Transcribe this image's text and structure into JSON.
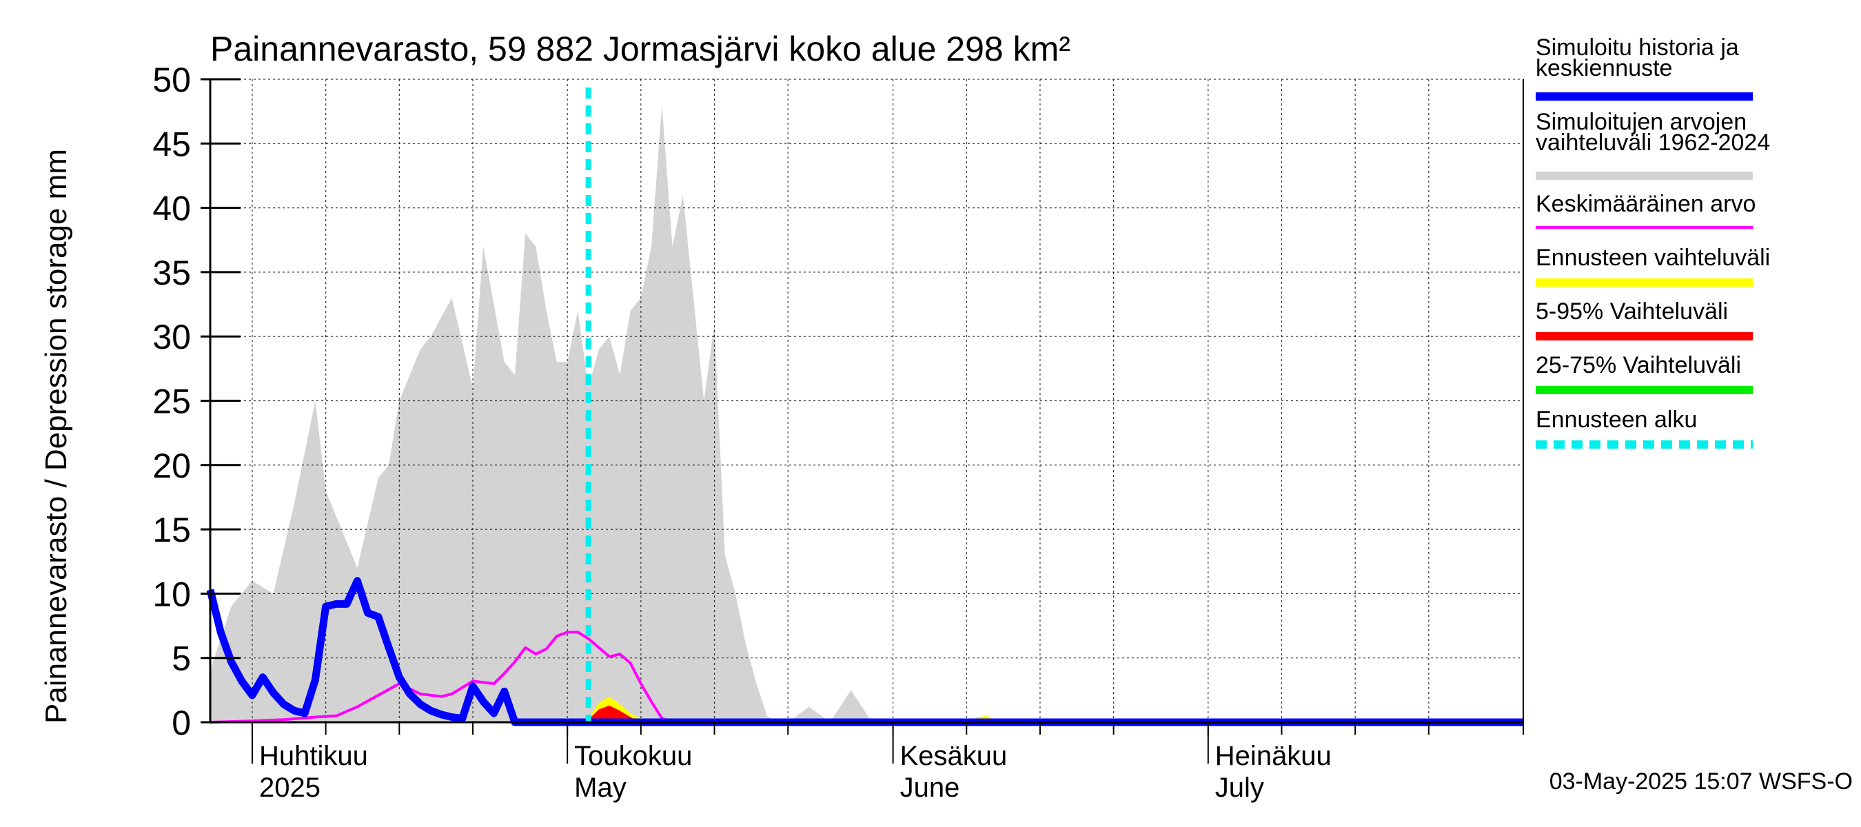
{
  "chart_data": {
    "type": "area",
    "title": "Painannevarasto, 59 882 Jormasjärvi koko alue 298 km²",
    "ylabel": "Painannevarasto / Depression storage    mm",
    "ylim": [
      0,
      50
    ],
    "yticks": [
      0,
      5,
      10,
      15,
      20,
      25,
      30,
      35,
      40,
      45,
      50
    ],
    "x_start": "2025-03-28",
    "x_end": "2025-07-31",
    "x_tick_dates": [
      "2025-04-01",
      "2025-04-08",
      "2025-04-15",
      "2025-04-22",
      "2025-05-01",
      "2025-05-08",
      "2025-05-15",
      "2025-05-22",
      "2025-06-01",
      "2025-06-08",
      "2025-06-15",
      "2025-06-22",
      "2025-07-01",
      "2025-07-08",
      "2025-07-15",
      "2025-07-22",
      "2025-07-31"
    ],
    "grid": true,
    "month_labels": [
      {
        "date": "2025-04-01",
        "fi": "Huhtikuu",
        "en": "2025"
      },
      {
        "date": "2025-05-01",
        "fi": "Toukokuu",
        "en": "May"
      },
      {
        "date": "2025-06-01",
        "fi": "Kesäkuu",
        "en": "June"
      },
      {
        "date": "2025-07-01",
        "fi": "Heinäkuu",
        "en": "July"
      }
    ],
    "forecast_start": "2025-05-03",
    "series": [
      {
        "name": "Simuloitujen arvojen vaihteluväli 1962-2024",
        "kind": "band",
        "color": "#d3d3d3",
        "x": [
          "2025-03-28",
          "2025-03-30",
          "2025-04-01",
          "2025-04-03",
          "2025-04-05",
          "2025-04-07",
          "2025-04-08",
          "2025-04-10",
          "2025-04-11",
          "2025-04-13",
          "2025-04-14",
          "2025-04-15",
          "2025-04-17",
          "2025-04-18",
          "2025-04-20",
          "2025-04-22",
          "2025-04-23",
          "2025-04-25",
          "2025-04-26",
          "2025-04-27",
          "2025-04-28",
          "2025-04-29",
          "2025-04-30",
          "2025-05-01",
          "2025-05-02",
          "2025-05-03",
          "2025-05-04",
          "2025-05-05",
          "2025-05-06",
          "2025-05-07",
          "2025-05-08",
          "2025-05-09",
          "2025-05-10",
          "2025-05-11",
          "2025-05-12",
          "2025-05-13",
          "2025-05-14",
          "2025-05-15",
          "2025-05-16",
          "2025-05-17",
          "2025-05-18",
          "2025-05-19",
          "2025-05-20",
          "2025-05-21",
          "2025-05-22",
          "2025-05-24",
          "2025-05-26",
          "2025-05-28",
          "2025-05-30",
          "2025-06-01",
          "2025-06-02",
          "2025-06-03",
          "2025-06-04",
          "2025-06-05",
          "2025-06-07"
        ],
        "low": [
          0,
          0,
          0,
          0,
          0,
          0,
          0,
          0,
          0,
          0,
          0,
          0,
          0,
          0,
          0,
          0,
          0,
          0,
          0,
          0,
          0,
          0,
          0,
          0,
          0,
          0,
          0,
          0,
          0,
          0,
          0,
          0,
          0,
          0,
          0,
          0,
          0,
          0,
          0,
          0,
          0,
          0,
          0,
          0,
          0,
          0,
          0,
          0,
          0,
          0,
          0,
          0,
          0,
          0,
          0
        ],
        "high": [
          4,
          9,
          11,
          10,
          17,
          25,
          18,
          14,
          12,
          19,
          20,
          25,
          29,
          30,
          33,
          26,
          37,
          28,
          27,
          38,
          37,
          32,
          28,
          28,
          32,
          26,
          29,
          30,
          27,
          32,
          33,
          37,
          48,
          37,
          41,
          33,
          25,
          31,
          13,
          10,
          6,
          3,
          0.5,
          0,
          0,
          1.2,
          0,
          2.5,
          0,
          0,
          0,
          0,
          0,
          0,
          0
        ]
      },
      {
        "name": "Ennusteen vaihteluväli",
        "kind": "band",
        "color": "#ffff00",
        "x": [
          "2025-05-03",
          "2025-05-04",
          "2025-05-05",
          "2025-05-06",
          "2025-05-07",
          "2025-05-08",
          "2025-05-09",
          "2025-06-08",
          "2025-06-09",
          "2025-06-10",
          "2025-06-11"
        ],
        "low": [
          0,
          0,
          0,
          0,
          0,
          0,
          0,
          0,
          0,
          0,
          0
        ],
        "high": [
          0.3,
          1.5,
          2.0,
          1.4,
          0.7,
          0.3,
          0,
          0,
          0.4,
          0.5,
          0
        ]
      },
      {
        "name": "5-95% Vaihteluväli",
        "kind": "band",
        "color": "#ff0000",
        "x": [
          "2025-05-03",
          "2025-05-04",
          "2025-05-05",
          "2025-05-06",
          "2025-05-07",
          "2025-05-08"
        ],
        "low": [
          0,
          0,
          0,
          0,
          0,
          0
        ],
        "high": [
          0.2,
          1.0,
          1.3,
          0.9,
          0.4,
          0
        ]
      },
      {
        "name": "25-75% Vaihteluväli",
        "kind": "band",
        "color": "#00ee00",
        "x": [
          "2025-05-03",
          "2025-05-04",
          "2025-05-05",
          "2025-05-06",
          "2025-05-07",
          "2025-05-08"
        ],
        "low": [
          0,
          0,
          0,
          0,
          0,
          0
        ],
        "high": [
          0,
          0.2,
          0.3,
          0.2,
          0.1,
          0
        ]
      },
      {
        "name": "Keskimääräinen arvo",
        "kind": "line",
        "color": "#ff00ff",
        "x": [
          "2025-03-28",
          "2025-04-01",
          "2025-04-04",
          "2025-04-07",
          "2025-04-09",
          "2025-04-11",
          "2025-04-13",
          "2025-04-15",
          "2025-04-17",
          "2025-04-19",
          "2025-04-20",
          "2025-04-22",
          "2025-04-24",
          "2025-04-25",
          "2025-04-26",
          "2025-04-27",
          "2025-04-28",
          "2025-04-29",
          "2025-04-30",
          "2025-05-01",
          "2025-05-02",
          "2025-05-03",
          "2025-05-04",
          "2025-05-05",
          "2025-05-06",
          "2025-05-07",
          "2025-05-08",
          "2025-05-09",
          "2025-05-10",
          "2025-05-11",
          "2025-05-31",
          "2025-07-31"
        ],
        "values": [
          0,
          0.1,
          0.2,
          0.4,
          0.5,
          1.2,
          2.1,
          3.0,
          2.2,
          2.0,
          2.2,
          3.2,
          3.0,
          3.8,
          4.7,
          5.8,
          5.3,
          5.7,
          6.7,
          7.0,
          7.0,
          6.5,
          5.8,
          5.1,
          5.3,
          4.6,
          3.0,
          1.6,
          0.3,
          0,
          0,
          0
        ]
      },
      {
        "name": "Simuloitu historia ja keskiennuste",
        "kind": "line",
        "color": "#0000ff",
        "x": [
          "2025-03-28",
          "2025-03-29",
          "2025-03-30",
          "2025-03-31",
          "2025-04-01",
          "2025-04-02",
          "2025-04-03",
          "2025-04-04",
          "2025-04-05",
          "2025-04-06",
          "2025-04-07",
          "2025-04-08",
          "2025-04-09",
          "2025-04-10",
          "2025-04-11",
          "2025-04-12",
          "2025-04-13",
          "2025-04-14",
          "2025-04-15",
          "2025-04-16",
          "2025-04-17",
          "2025-04-18",
          "2025-04-19",
          "2025-04-20",
          "2025-04-21",
          "2025-04-22",
          "2025-04-23",
          "2025-04-24",
          "2025-04-25",
          "2025-04-26",
          "2025-04-27",
          "2025-04-28",
          "2025-04-29",
          "2025-04-30",
          "2025-05-01",
          "2025-05-02",
          "2025-05-03",
          "2025-07-31"
        ],
        "values": [
          10.3,
          7.0,
          4.7,
          3.2,
          2.1,
          3.5,
          2.3,
          1.4,
          0.9,
          0.7,
          3.3,
          9.0,
          9.2,
          9.2,
          11.0,
          8.5,
          8.2,
          5.8,
          3.5,
          2.2,
          1.4,
          0.9,
          0.6,
          0.4,
          0.3,
          2.8,
          1.6,
          0.7,
          2.4,
          0,
          0,
          0,
          0,
          0,
          0,
          0,
          0,
          0
        ]
      }
    ]
  },
  "legend": [
    {
      "label": "Simuloitu historia ja keskiennuste",
      "color": "#0000ff",
      "style": "solid"
    },
    {
      "label": "Simuloitujen arvojen vaihteluväli 1962-2024",
      "color": "#d3d3d3",
      "style": "solid"
    },
    {
      "label": "Keskimääräinen arvo",
      "color": "#ff00ff",
      "style": "thin"
    },
    {
      "label": "Ennusteen vaihteluväli",
      "color": "#ffff00",
      "style": "solid"
    },
    {
      "label": "5-95% Vaihteluväli",
      "color": "#ff0000",
      "style": "solid"
    },
    {
      "label": "25-75% Vaihteluväli",
      "color": "#00ee00",
      "style": "solid"
    },
    {
      "label": "Ennusteen alku",
      "color": "#00eeee",
      "style": "dashed"
    }
  ],
  "timestamp": "03-May-2025 15:07 WSFS-O"
}
